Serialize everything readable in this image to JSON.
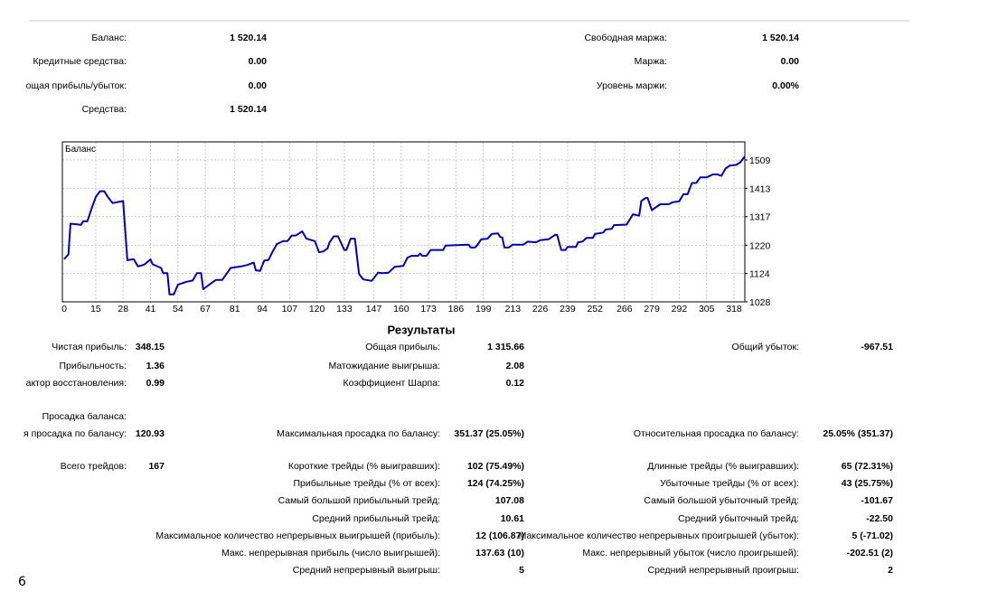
{
  "account": {
    "left": [
      {
        "label": "Баланс:",
        "value": "1 520.14"
      },
      {
        "label": "Кредитные средства:",
        "value": "0.00"
      },
      {
        "label": "ощая прибыль/убыток:",
        "value": "0.00"
      },
      {
        "label": "Средства:",
        "value": "1 520.14"
      }
    ],
    "right": [
      {
        "label": "Свободная маржа:",
        "value": "1 520.14"
      },
      {
        "label": "Маржа:",
        "value": "0.00"
      },
      {
        "label": "Уровень маржи:",
        "value": "0.00%"
      }
    ]
  },
  "chart_data": {
    "type": "line",
    "title": "Баланс",
    "series_color": "#0000b4",
    "x_ticks": [
      0,
      15,
      28,
      41,
      54,
      67,
      81,
      94,
      107,
      120,
      133,
      147,
      160,
      173,
      186,
      199,
      213,
      226,
      239,
      252,
      266,
      279,
      292,
      305,
      318
    ],
    "y_ticks": [
      1028,
      1124,
      1220,
      1317,
      1413,
      1509
    ],
    "xlim": [
      0,
      324
    ],
    "ylim": [
      1028,
      1548
    ],
    "grid": true,
    "series": [
      {
        "name": "Баланс",
        "points": [
          [
            0,
            1173
          ],
          [
            2,
            1189
          ],
          [
            3,
            1293
          ],
          [
            8,
            1289
          ],
          [
            9,
            1301
          ],
          [
            11,
            1301
          ],
          [
            13,
            1344
          ],
          [
            15,
            1384
          ],
          [
            17,
            1403
          ],
          [
            19,
            1403
          ],
          [
            21,
            1381
          ],
          [
            23,
            1363
          ],
          [
            28,
            1370
          ],
          [
            30,
            1169
          ],
          [
            33,
            1173
          ],
          [
            35,
            1148
          ],
          [
            38,
            1154
          ],
          [
            41,
            1172
          ],
          [
            42,
            1155
          ],
          [
            46,
            1143
          ],
          [
            47,
            1125
          ],
          [
            49,
            1125
          ],
          [
            50,
            1053
          ],
          [
            52,
            1053
          ],
          [
            54,
            1086
          ],
          [
            58,
            1096
          ],
          [
            61,
            1100
          ],
          [
            63,
            1125
          ],
          [
            65,
            1125
          ],
          [
            66,
            1071
          ],
          [
            70,
            1092
          ],
          [
            72,
            1102
          ],
          [
            75,
            1102
          ],
          [
            77,
            1122
          ],
          [
            79,
            1143
          ],
          [
            84,
            1148
          ],
          [
            87,
            1153
          ],
          [
            90,
            1161
          ],
          [
            91,
            1135
          ],
          [
            93,
            1133
          ],
          [
            95,
            1168
          ],
          [
            97,
            1170
          ],
          [
            99,
            1199
          ],
          [
            101,
            1224
          ],
          [
            104,
            1234
          ],
          [
            106,
            1234
          ],
          [
            108,
            1253
          ],
          [
            110,
            1253
          ],
          [
            113,
            1267
          ],
          [
            115,
            1242
          ],
          [
            119,
            1234
          ],
          [
            121,
            1196
          ],
          [
            123,
            1199
          ],
          [
            125,
            1209
          ],
          [
            126,
            1230
          ],
          [
            128,
            1250
          ],
          [
            130,
            1250
          ],
          [
            133,
            1204
          ],
          [
            134,
            1204
          ],
          [
            136,
            1242
          ],
          [
            138,
            1242
          ],
          [
            140,
            1122
          ],
          [
            142,
            1104
          ],
          [
            146,
            1099
          ],
          [
            149,
            1127
          ],
          [
            151,
            1125
          ],
          [
            154,
            1127
          ],
          [
            157,
            1147
          ],
          [
            161,
            1150
          ],
          [
            163,
            1178
          ],
          [
            165,
            1184
          ],
          [
            168,
            1184
          ],
          [
            169,
            1192
          ],
          [
            170,
            1184
          ],
          [
            172,
            1184
          ],
          [
            174,
            1204
          ],
          [
            180,
            1204
          ],
          [
            181,
            1219
          ],
          [
            192,
            1222
          ],
          [
            193,
            1212
          ],
          [
            195,
            1212
          ],
          [
            196,
            1219
          ],
          [
            198,
            1240
          ],
          [
            201,
            1242
          ],
          [
            203,
            1258
          ],
          [
            206,
            1260
          ],
          [
            207,
            1248
          ],
          [
            208,
            1246
          ],
          [
            209,
            1212
          ],
          [
            211,
            1212
          ],
          [
            213,
            1222
          ],
          [
            218,
            1222
          ],
          [
            220,
            1232
          ],
          [
            224,
            1230
          ],
          [
            226,
            1237
          ],
          [
            230,
            1240
          ],
          [
            233,
            1255
          ],
          [
            234,
            1255
          ],
          [
            236,
            1204
          ],
          [
            238,
            1204
          ],
          [
            239,
            1214
          ],
          [
            243,
            1214
          ],
          [
            244,
            1230
          ],
          [
            246,
            1232
          ],
          [
            248,
            1245
          ],
          [
            251,
            1245
          ],
          [
            252,
            1258
          ],
          [
            256,
            1263
          ],
          [
            257,
            1273
          ],
          [
            260,
            1276
          ],
          [
            261,
            1288
          ],
          [
            267,
            1290
          ],
          [
            270,
            1325
          ],
          [
            273,
            1320
          ],
          [
            274,
            1370
          ],
          [
            276,
            1380
          ],
          [
            277,
            1380
          ],
          [
            279,
            1339
          ],
          [
            281,
            1349
          ],
          [
            283,
            1359
          ],
          [
            287,
            1359
          ],
          [
            289,
            1366
          ],
          [
            292,
            1369
          ],
          [
            294,
            1393
          ],
          [
            296,
            1393
          ],
          [
            298,
            1431
          ],
          [
            300,
            1431
          ],
          [
            302,
            1450
          ],
          [
            305,
            1450
          ],
          [
            308,
            1460
          ],
          [
            310,
            1460
          ],
          [
            312,
            1455
          ],
          [
            314,
            1480
          ],
          [
            316,
            1490
          ],
          [
            319,
            1492
          ],
          [
            321,
            1501
          ],
          [
            323,
            1520
          ]
        ]
      }
    ]
  },
  "results": {
    "title": "Результаты",
    "rows": [
      {
        "label": "Чистая прибыль:",
        "value": "348.15",
        "col": 1,
        "row": 0
      },
      {
        "label": "Общая прибыль:",
        "value": "1 315.66",
        "col": 2,
        "row": 0
      },
      {
        "label": "Общий убыток:",
        "value": "-967.51",
        "col": 3,
        "row": 0
      },
      {
        "label": "Прибыльность:",
        "value": "1.36",
        "col": 1,
        "row": 1
      },
      {
        "label": "Матожидание выигрыша:",
        "value": "2.08",
        "col": 2,
        "row": 1
      },
      {
        "label": "актор восстановления:",
        "value": "0.99",
        "col": 1,
        "row": 2
      },
      {
        "label": "Коэффициент Шарпа:",
        "value": "0.12",
        "col": 2,
        "row": 2
      },
      {
        "label": "Просадка баланса:",
        "value": "",
        "col": 1,
        "row": 3
      },
      {
        "label": "я просадка по балансу:",
        "value": "120.93",
        "col": 1,
        "row": 4
      },
      {
        "label": "Максимальная просадка по балансу:",
        "value": "351.37 (25.05%)",
        "col": 2,
        "row": 4
      },
      {
        "label": "Относительная просадка по балансу:",
        "value": "25.05% (351.37)",
        "col": 3,
        "row": 4
      },
      {
        "label": "Всего трейдов:",
        "value": "167",
        "col": 1,
        "row": 5
      },
      {
        "label": "Короткие трейды (% выигравших):",
        "value": "102 (75.49%)",
        "col": 2,
        "row": 5
      },
      {
        "label": "Длинные трейды (% выигравших):",
        "value": "65 (72.31%)",
        "col": 3,
        "row": 5
      },
      {
        "label": "Прибыльные трейды (% от всех):",
        "value": "124 (74.25%)",
        "col": 2,
        "row": 6
      },
      {
        "label": "Убыточные трейды (% от всех):",
        "value": "43 (25.75%)",
        "col": 3,
        "row": 6
      },
      {
        "label": "Самый большой прибыльный трейд:",
        "value": "107.08",
        "col": 2,
        "row": 7
      },
      {
        "label": "Самый большой убыточный трейд:",
        "value": "-101.67",
        "col": 3,
        "row": 7
      },
      {
        "label": "Средний прибыльный трейд:",
        "value": "10.61",
        "col": 2,
        "row": 8
      },
      {
        "label": "Средний убыточный трейд:",
        "value": "-22.50",
        "col": 3,
        "row": 8
      },
      {
        "label": "Максимальное количество непрерывных выигрышей (прибыль):",
        "value": "12 (106.87)",
        "col": 2,
        "row": 9
      },
      {
        "label": "Максимальное количество непрерывных проигрышей (убыток):",
        "value": "5 (-71.02)",
        "col": 3,
        "row": 9
      },
      {
        "label": "Макс. непрерывная прибыль (число выигрышей):",
        "value": "137.63 (10)",
        "col": 2,
        "row": 10
      },
      {
        "label": "Макс. непрерывный убыток (число проигрышей):",
        "value": "-202.51 (2)",
        "col": 3,
        "row": 10
      },
      {
        "label": "Средний непрерывный выигрыш:",
        "value": "5",
        "col": 2,
        "row": 11
      },
      {
        "label": "Средний непрерывный проигрыш:",
        "value": "2",
        "col": 3,
        "row": 11
      }
    ]
  },
  "page_number": "6"
}
